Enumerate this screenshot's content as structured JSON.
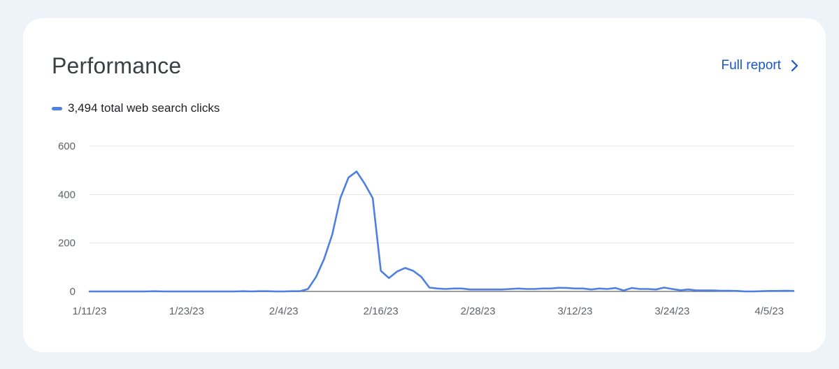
{
  "card": {
    "title": "Performance",
    "full_report_label": "Full report",
    "full_report_icon": "chevron-right-icon"
  },
  "legend": {
    "label": "3,494 total web search clicks",
    "color": "#4f7fe0"
  },
  "chart_data": {
    "type": "line",
    "title": "",
    "xlabel": "",
    "ylabel": "",
    "ylim": [
      0,
      600
    ],
    "yticks": [
      "600",
      "400",
      "200",
      "0"
    ],
    "xticks": [
      "1/11/23",
      "1/23/23",
      "2/4/23",
      "2/16/23",
      "2/28/23",
      "3/12/23",
      "3/24/23",
      "4/5/23"
    ],
    "x_start": "1/11/23",
    "x_end": "4/8/23",
    "grid": true,
    "legend_position": "top-left",
    "series": [
      {
        "name": "3,494 total web search clicks",
        "color": "#4f7fe0",
        "x": [
          "1/11/23",
          "1/12/23",
          "1/13/23",
          "1/14/23",
          "1/15/23",
          "1/16/23",
          "1/17/23",
          "1/18/23",
          "1/19/23",
          "1/20/23",
          "1/21/23",
          "1/22/23",
          "1/23/23",
          "1/24/23",
          "1/25/23",
          "1/26/23",
          "1/27/23",
          "1/28/23",
          "1/29/23",
          "1/30/23",
          "1/31/23",
          "2/1/23",
          "2/2/23",
          "2/3/23",
          "2/4/23",
          "2/5/23",
          "2/6/23",
          "2/7/23",
          "2/8/23",
          "2/9/23",
          "2/10/23",
          "2/11/23",
          "2/12/23",
          "2/13/23",
          "2/14/23",
          "2/15/23",
          "2/16/23",
          "2/17/23",
          "2/18/23",
          "2/19/23",
          "2/20/23",
          "2/21/23",
          "2/22/23",
          "2/23/23",
          "2/24/23",
          "2/25/23",
          "2/26/23",
          "2/27/23",
          "2/28/23",
          "3/1/23",
          "3/2/23",
          "3/3/23",
          "3/4/23",
          "3/5/23",
          "3/6/23",
          "3/7/23",
          "3/8/23",
          "3/9/23",
          "3/10/23",
          "3/11/23",
          "3/12/23",
          "3/13/23",
          "3/14/23",
          "3/15/23",
          "3/16/23",
          "3/17/23",
          "3/18/23",
          "3/19/23",
          "3/20/23",
          "3/21/23",
          "3/22/23",
          "3/23/23",
          "3/24/23",
          "3/25/23",
          "3/26/23",
          "3/27/23",
          "3/28/23",
          "3/29/23",
          "3/30/23",
          "3/31/23",
          "4/1/23",
          "4/2/23",
          "4/3/23",
          "4/4/23",
          "4/5/23",
          "4/6/23",
          "4/7/23",
          "4/8/23"
        ],
        "values": [
          0,
          0,
          0,
          0,
          0,
          0,
          0,
          0,
          1,
          0,
          0,
          0,
          0,
          0,
          0,
          0,
          0,
          0,
          0,
          1,
          0,
          1,
          1,
          0,
          0,
          1,
          1,
          10,
          60,
          135,
          235,
          385,
          470,
          495,
          445,
          385,
          85,
          55,
          82,
          97,
          85,
          60,
          16,
          12,
          10,
          12,
          12,
          8,
          8,
          8,
          8,
          8,
          10,
          12,
          10,
          10,
          12,
          12,
          15,
          14,
          12,
          12,
          8,
          12,
          10,
          14,
          4,
          14,
          10,
          10,
          8,
          16,
          10,
          5,
          8,
          4,
          4,
          4,
          3,
          3,
          2,
          0,
          0,
          1,
          2,
          2,
          3,
          2
        ]
      }
    ]
  }
}
